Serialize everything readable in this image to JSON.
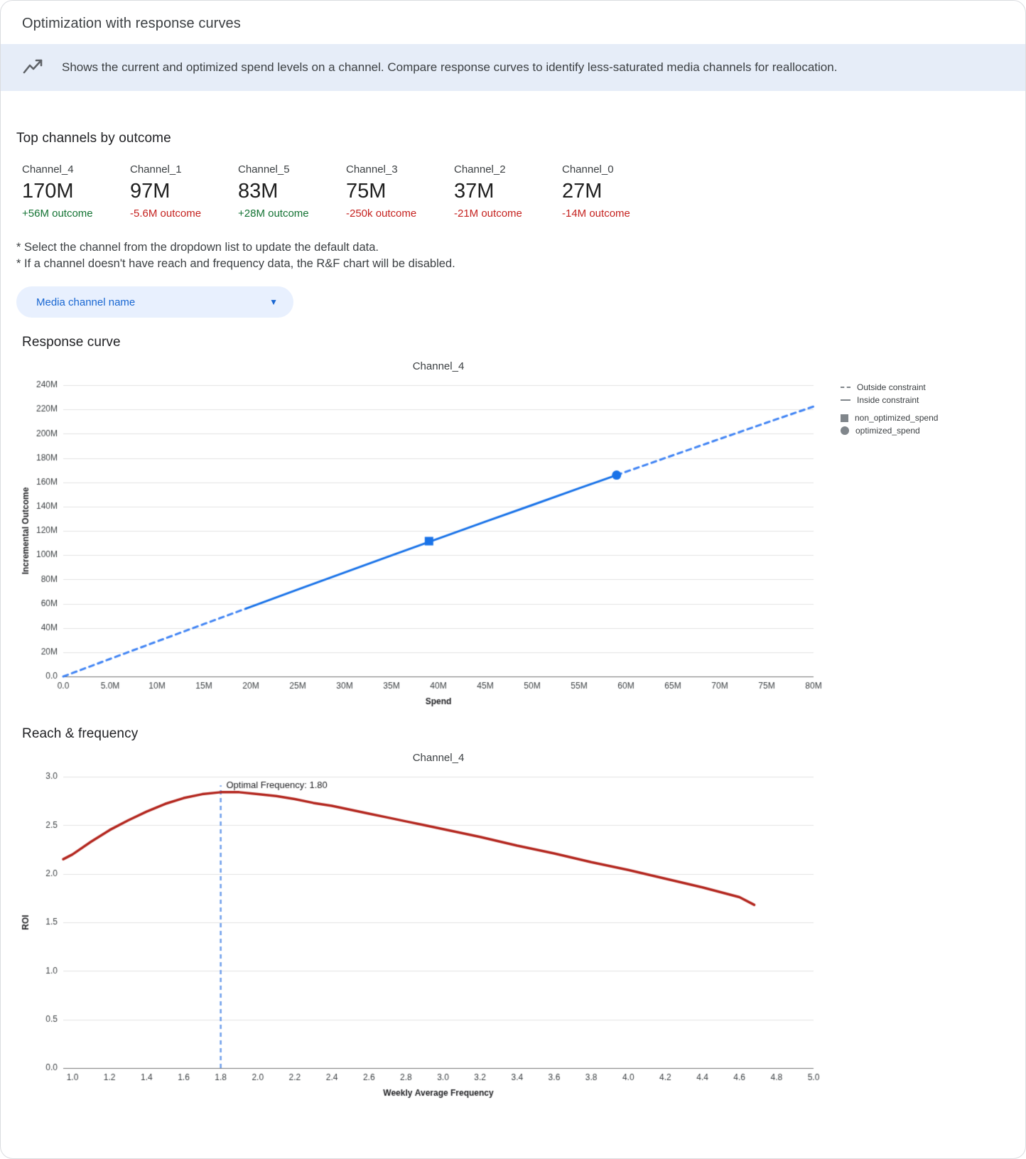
{
  "header": {
    "title": "Optimization with response curves"
  },
  "banner": {
    "text": "Shows the current and optimized spend levels on a channel. Compare response curves to identify less-saturated media channels for reallocation."
  },
  "top_channels": {
    "heading": "Top channels by outcome",
    "items": [
      {
        "name": "Channel_4",
        "value": "170M",
        "delta": "+56M outcome",
        "delta_color": "#137333"
      },
      {
        "name": "Channel_1",
        "value": "97M",
        "delta": "-5.6M outcome",
        "delta_color": "#c5221f"
      },
      {
        "name": "Channel_5",
        "value": "83M",
        "delta": "+28M outcome",
        "delta_color": "#137333"
      },
      {
        "name": "Channel_3",
        "value": "75M",
        "delta": "-250k outcome",
        "delta_color": "#c5221f"
      },
      {
        "name": "Channel_2",
        "value": "37M",
        "delta": "-21M outcome",
        "delta_color": "#c5221f"
      },
      {
        "name": "Channel_0",
        "value": "27M",
        "delta": "-14M outcome",
        "delta_color": "#c5221f"
      }
    ]
  },
  "notes": [
    "* Select the channel from the dropdown list to update the default data.",
    "* If a channel doesn't have reach and frequency data, the R&F chart will be disabled."
  ],
  "dropdown": {
    "label": "Media channel name"
  },
  "sections": {
    "response_curve": "Response curve",
    "reach_frequency": "Reach & frequency"
  },
  "chart_data": [
    {
      "type": "line",
      "title": "Channel_4",
      "xlabel": "Spend",
      "ylabel": "Incremental Outcome",
      "xlim": [
        0,
        80
      ],
      "ylim": [
        0,
        240
      ],
      "grid": "horizontal",
      "xticks": {
        "values": [
          0,
          5,
          10,
          15,
          20,
          25,
          30,
          35,
          40,
          45,
          50,
          55,
          60,
          65,
          70,
          75,
          80
        ],
        "labels": [
          "0.0",
          "5.0M",
          "10M",
          "15M",
          "20M",
          "25M",
          "30M",
          "35M",
          "40M",
          "45M",
          "50M",
          "55M",
          "60M",
          "65M",
          "70M",
          "75M",
          "80M"
        ]
      },
      "yticks": {
        "values": [
          0,
          20,
          40,
          60,
          80,
          100,
          120,
          140,
          160,
          180,
          200,
          220,
          240
        ],
        "labels": [
          "0.0",
          "20M",
          "40M",
          "60M",
          "80M",
          "100M",
          "120M",
          "140M",
          "160M",
          "180M",
          "200M",
          "220M",
          "240M"
        ]
      },
      "series": [
        {
          "name": "Outside constraint (below)",
          "style": "dashed",
          "color": "#4285f4",
          "width": 3,
          "points": [
            [
              0,
              0
            ],
            [
              5,
              14.5
            ],
            [
              10,
              28.9
            ],
            [
              15,
              43.2
            ],
            [
              19.5,
              56.0
            ]
          ]
        },
        {
          "name": "Inside constraint",
          "style": "solid",
          "color": "#1a73e8",
          "width": 3,
          "points": [
            [
              19.5,
              56.0
            ],
            [
              25,
              71.6
            ],
            [
              30,
              85.7
            ],
            [
              35,
              99.7
            ],
            [
              40,
              113.6
            ],
            [
              45,
              127.5
            ],
            [
              50,
              141.2
            ],
            [
              55,
              155.0
            ],
            [
              59,
              165.9
            ]
          ]
        },
        {
          "name": "Outside constraint (above)",
          "style": "dashed",
          "color": "#4285f4",
          "width": 3,
          "points": [
            [
              59,
              165.9
            ],
            [
              65,
              182.2
            ],
            [
              70,
              195.7
            ],
            [
              75,
              209.1
            ],
            [
              80,
              222.4
            ]
          ]
        }
      ],
      "markers": [
        {
          "shape": "square",
          "x": 39,
          "y": 111.5,
          "color": "#1a73e8",
          "label": "non_optimized_spend"
        },
        {
          "shape": "circle",
          "x": 59,
          "y": 165.9,
          "color": "#1a73e8",
          "label": "optimized_spend"
        }
      ],
      "legend": {
        "position": "right",
        "items": [
          {
            "label": "Outside constraint",
            "sample": "dashed-line"
          },
          {
            "label": "Inside constraint",
            "sample": "solid-line"
          },
          {
            "label": "non_optimized_spend",
            "sample": "square"
          },
          {
            "label": "optimized_spend",
            "sample": "circle"
          }
        ]
      }
    },
    {
      "type": "line",
      "title": "Channel_4",
      "xlabel": "Weekly Average Frequency",
      "ylabel": "ROI",
      "xlim": [
        0.95,
        5.0
      ],
      "ylim": [
        0,
        3.0
      ],
      "grid": "horizontal",
      "xticks": {
        "values": [
          1.0,
          1.2,
          1.4,
          1.6,
          1.8,
          2.0,
          2.2,
          2.4,
          2.6,
          2.8,
          3.0,
          3.2,
          3.4,
          3.6,
          3.8,
          4.0,
          4.2,
          4.4,
          4.6,
          4.8,
          5.0
        ],
        "labels": [
          "1.0",
          "1.2",
          "1.4",
          "1.6",
          "1.8",
          "2.0",
          "2.2",
          "2.4",
          "2.6",
          "2.8",
          "3.0",
          "3.2",
          "3.4",
          "3.6",
          "3.8",
          "4.0",
          "4.2",
          "4.4",
          "4.6",
          "4.8",
          "5.0"
        ]
      },
      "yticks": {
        "values": [
          0,
          0.5,
          1.0,
          1.5,
          2.0,
          2.5,
          3.0
        ],
        "labels": [
          "0.0",
          "0.5",
          "1.0",
          "1.5",
          "2.0",
          "2.5",
          "3.0"
        ]
      },
      "series": [
        {
          "name": "ROI curve",
          "style": "solid",
          "color": "#b3261e",
          "width": 3.5,
          "points": [
            [
              0.95,
              2.15
            ],
            [
              1.0,
              2.2
            ],
            [
              1.1,
              2.33
            ],
            [
              1.2,
              2.45
            ],
            [
              1.3,
              2.55
            ],
            [
              1.4,
              2.64
            ],
            [
              1.5,
              2.72
            ],
            [
              1.6,
              2.78
            ],
            [
              1.7,
              2.82
            ],
            [
              1.8,
              2.84
            ],
            [
              1.9,
              2.84
            ],
            [
              2.0,
              2.82
            ],
            [
              2.1,
              2.8
            ],
            [
              2.2,
              2.77
            ],
            [
              2.3,
              2.73
            ],
            [
              2.4,
              2.7
            ],
            [
              2.5,
              2.66
            ],
            [
              2.6,
              2.62
            ],
            [
              2.7,
              2.58
            ],
            [
              2.8,
              2.54
            ],
            [
              2.9,
              2.5
            ],
            [
              3.0,
              2.46
            ],
            [
              3.2,
              2.38
            ],
            [
              3.4,
              2.29
            ],
            [
              3.6,
              2.21
            ],
            [
              3.8,
              2.12
            ],
            [
              4.0,
              2.04
            ],
            [
              4.2,
              1.95
            ],
            [
              4.4,
              1.86
            ],
            [
              4.6,
              1.76
            ],
            [
              4.68,
              1.68
            ]
          ]
        }
      ],
      "vlines": [
        {
          "x": 1.8,
          "y0": 0,
          "y1": 2.91,
          "color": "#6d9eeb",
          "style": "dashed",
          "label": "optimal frequency"
        }
      ],
      "annotations": [
        {
          "text": "Optimal Frequency: 1.80",
          "x": 1.83,
          "y": 2.88
        }
      ]
    }
  ]
}
